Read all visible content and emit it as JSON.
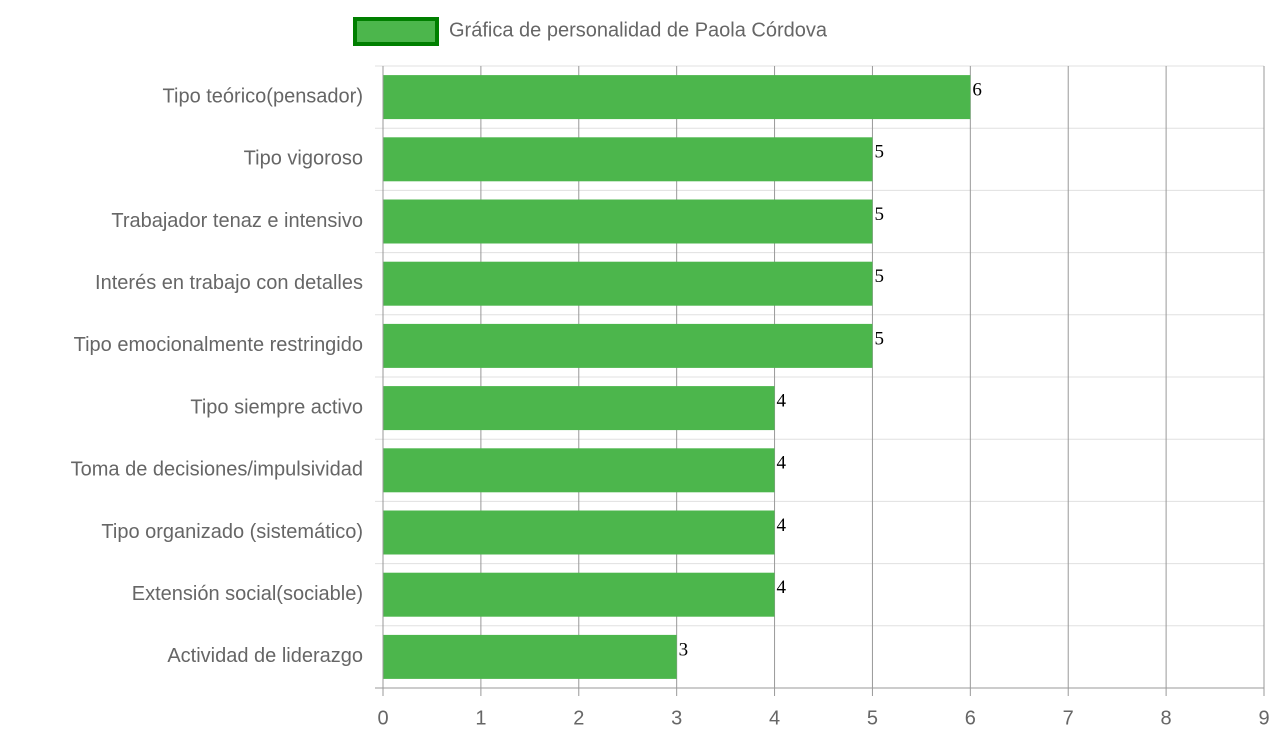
{
  "chart_data": {
    "type": "bar",
    "categories": [
      "Tipo teórico(pensador)",
      "Tipo vigoroso",
      "Trabajador tenaz e intensivo",
      "Interés en trabajo con detalles",
      "Tipo emocionalmente restringido",
      "Tipo siempre activo",
      "Toma de decisiones/impulsividad",
      "Tipo organizado (sistemático)",
      "Extensión social(sociable)",
      "Actividad de liderazgo"
    ],
    "series": [
      {
        "name": "Gráfica de personalidad de Paola Córdova",
        "color": "#4cb64c",
        "border_color": "#007f00",
        "values": [
          6,
          5,
          5,
          5,
          5,
          4,
          4,
          4,
          4,
          3
        ]
      }
    ],
    "xlim": [
      0,
      9
    ],
    "xticks": [
      0,
      1,
      2,
      3,
      4,
      5,
      6,
      7,
      8,
      9
    ],
    "grid": true
  }
}
